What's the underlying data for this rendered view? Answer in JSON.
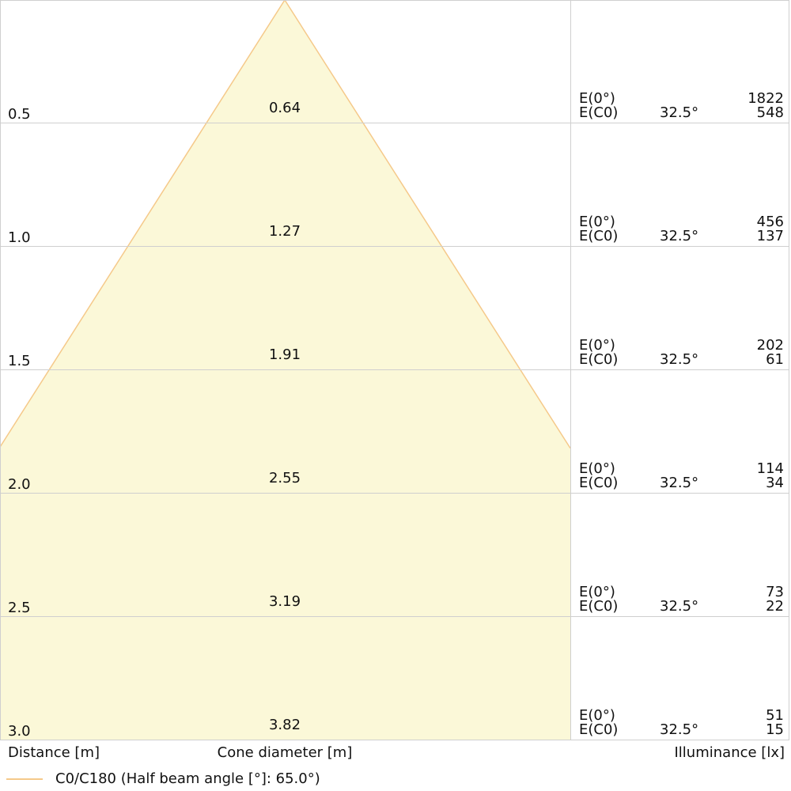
{
  "colors": {
    "cone_fill": "#fbf8d8",
    "cone_stroke": "#f5c98a",
    "grid": "#cfcfcf",
    "text": "#111111"
  },
  "labels": {
    "distance": "Distance [m]",
    "cone": "Cone diameter [m]",
    "illuminance": "Illuminance [lx]",
    "legend": "C0/C180 (Half beam angle [°]: 65.0°)"
  },
  "chart_data": {
    "type": "table",
    "half_beam_angle_deg": 65.0,
    "distance_range_m": [
      0,
      3.0
    ],
    "rows": [
      {
        "distance": "0.5",
        "cone": "0.64",
        "e0_label": "E(0°)",
        "ec0_label": "E(C0)",
        "angle": "32.5°",
        "e0": "1822",
        "ec0": "548"
      },
      {
        "distance": "1.0",
        "cone": "1.27",
        "e0_label": "E(0°)",
        "ec0_label": "E(C0)",
        "angle": "32.5°",
        "e0": "456",
        "ec0": "137"
      },
      {
        "distance": "1.5",
        "cone": "1.91",
        "e0_label": "E(0°)",
        "ec0_label": "E(C0)",
        "angle": "32.5°",
        "e0": "202",
        "ec0": "61"
      },
      {
        "distance": "2.0",
        "cone": "2.55",
        "e0_label": "E(0°)",
        "ec0_label": "E(C0)",
        "angle": "32.5°",
        "e0": "114",
        "ec0": "34"
      },
      {
        "distance": "2.5",
        "cone": "3.19",
        "e0_label": "E(0°)",
        "ec0_label": "E(C0)",
        "angle": "32.5°",
        "e0": "73",
        "ec0": "22"
      },
      {
        "distance": "3.0",
        "cone": "3.82",
        "e0_label": "E(0°)",
        "ec0_label": "E(C0)",
        "angle": "32.5°",
        "e0": "51",
        "ec0": "15"
      }
    ]
  }
}
